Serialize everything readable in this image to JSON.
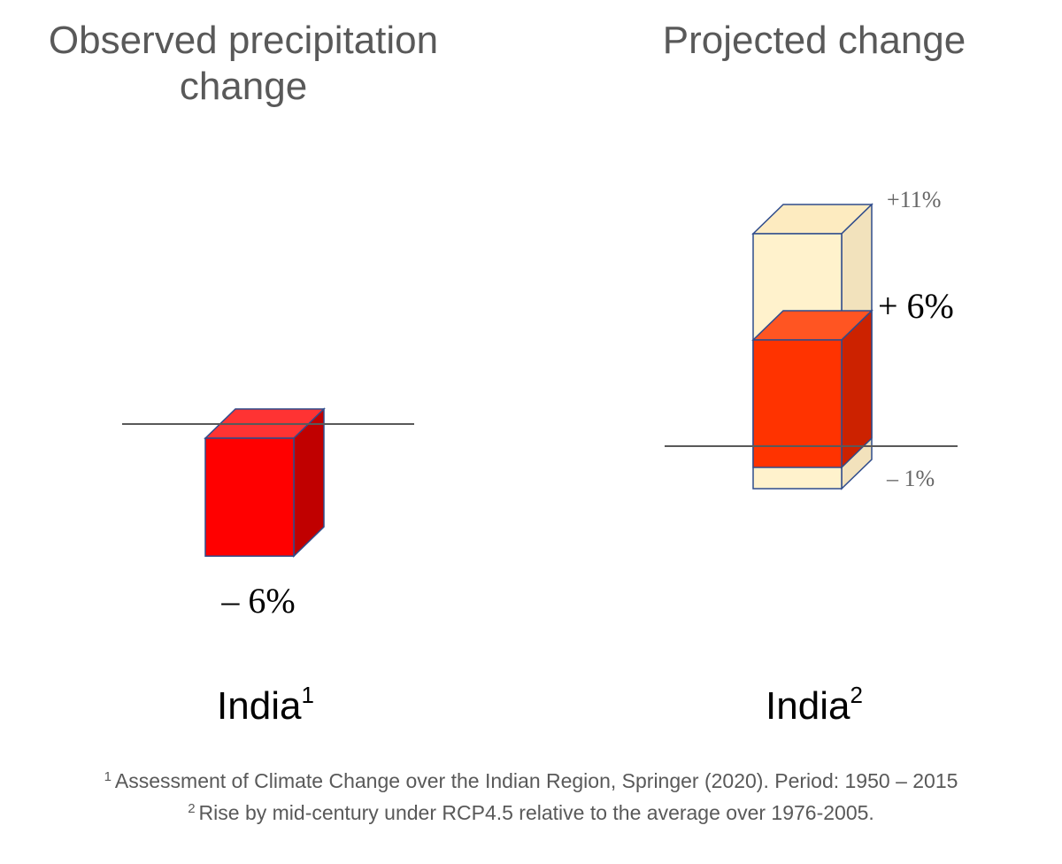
{
  "chart_data": [
    {
      "type": "bar",
      "title": "Observed precipitation change",
      "categories": [
        "India"
      ],
      "values": [
        -6
      ],
      "value_label": "– 6%",
      "region_label": "India",
      "region_sup": "1",
      "unit": "%",
      "colors": {
        "front": "#FF0000",
        "top": "#FF3333",
        "side": "#C00000"
      }
    },
    {
      "type": "bar",
      "title": "Projected change",
      "categories": [
        "India"
      ],
      "values": [
        6
      ],
      "range": [
        -1,
        11
      ],
      "value_label": "+ 6%",
      "range_max_label": "+11%",
      "range_min_label": "– 1%",
      "region_label": "India",
      "region_sup": "2",
      "unit": "%",
      "colors": {
        "front": "#FF3300",
        "top": "#FF5522",
        "side": "#CC2200",
        "range_front": "#FFF2CC",
        "range_top": "#FDEBC0",
        "range_side": "#F2E2BC"
      }
    }
  ],
  "footnotes": [
    {
      "sup": "1",
      "text": "Assessment of Climate Change over the Indian Region, Springer (2020). Period: 1950 – 2015"
    },
    {
      "sup": "2",
      "text": "Rise by mid-century under RCP4.5 relative to the average over 1976-2005."
    }
  ]
}
